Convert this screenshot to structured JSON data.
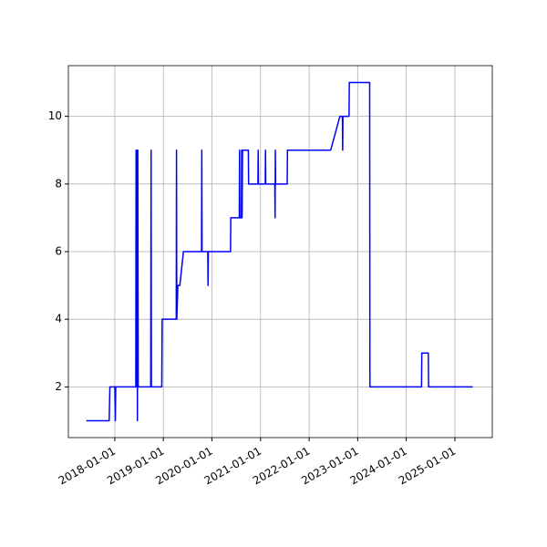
{
  "chart_data": {
    "type": "line",
    "color": "blue",
    "grid": true,
    "xlim": [
      "2017-01-17",
      "2025-10-09"
    ],
    "xticks": [
      "2018-01-01",
      "2019-01-01",
      "2020-01-01",
      "2021-01-01",
      "2022-01-01",
      "2023-01-01",
      "2024-01-01",
      "2025-01-01"
    ],
    "ylim": [
      0.5,
      11.5
    ],
    "yticks": [
      2,
      4,
      6,
      8,
      10
    ],
    "x": [
      "2017-06-01",
      "2017-11-20",
      "2017-11-25",
      "2018-01-01",
      "2018-01-05",
      "2018-01-08",
      "2018-06-08",
      "2018-06-10",
      "2018-06-13",
      "2018-06-17",
      "2018-06-20",
      "2018-06-23",
      "2018-06-26",
      "2018-09-28",
      "2018-10-01",
      "2018-10-03",
      "2018-12-20",
      "2018-12-23",
      "2019-04-08",
      "2019-04-10",
      "2019-04-12",
      "2019-04-20",
      "2019-05-05",
      "2019-06-01",
      "2019-10-15",
      "2019-10-17",
      "2019-10-19",
      "2019-12-01",
      "2019-12-03",
      "2019-12-05",
      "2020-05-20",
      "2020-05-22",
      "2020-07-25",
      "2020-07-27",
      "2020-07-29",
      "2020-08-10",
      "2020-08-12",
      "2020-08-15",
      "2020-08-18",
      "2020-10-01",
      "2020-10-03",
      "2020-12-12",
      "2020-12-14",
      "2020-12-16",
      "2021-02-05",
      "2021-02-07",
      "2021-02-09",
      "2021-04-18",
      "2021-04-20",
      "2021-04-22",
      "2021-04-24",
      "2021-07-20",
      "2021-07-22",
      "2022-06-12",
      "2022-08-20",
      "2022-09-08",
      "2022-09-10",
      "2022-09-12",
      "2022-10-28",
      "2022-10-30",
      "2023-04-01",
      "2023-04-03",
      "2024-04-25",
      "2024-04-27",
      "2024-06-15",
      "2024-06-17",
      "2025-05-15"
    ],
    "values": [
      1,
      1,
      2,
      2,
      1,
      2,
      2,
      9,
      2,
      9,
      1,
      9,
      2,
      2,
      9,
      2,
      2,
      4,
      4,
      9,
      4,
      5,
      5,
      6,
      6,
      9,
      6,
      6,
      5,
      6,
      6,
      7,
      7,
      9,
      7,
      7,
      9,
      7,
      9,
      9,
      8,
      8,
      9,
      8,
      8,
      9,
      8,
      8,
      7,
      9,
      8,
      8,
      9,
      9,
      10,
      10,
      9,
      10,
      10,
      11,
      11,
      2,
      2,
      3,
      3,
      2,
      2
    ]
  }
}
